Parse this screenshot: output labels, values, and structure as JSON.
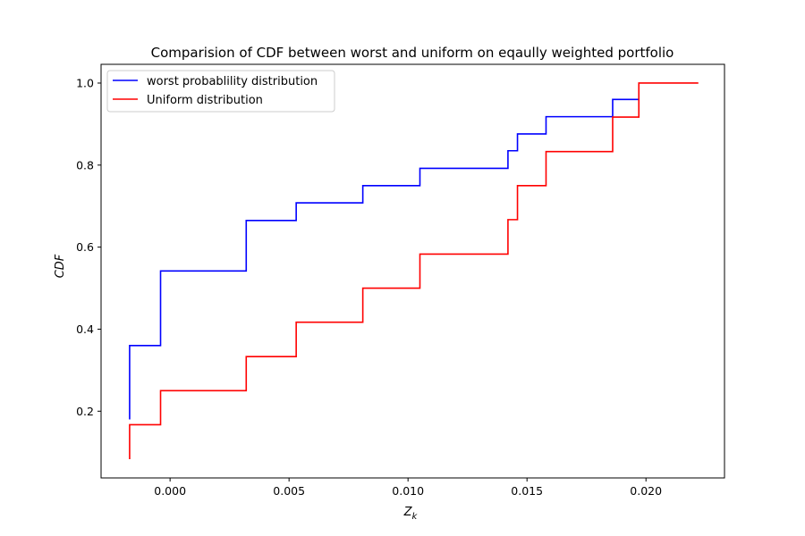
{
  "chart_data": {
    "type": "line",
    "step": "post",
    "title": "Comparision of  CDF between worst and uniform on eqaully weighted portfolio",
    "xlabel": "Z",
    "xlabel_subscript": "k",
    "ylabel": "CDF",
    "xlim": [
      -0.0029,
      0.0233
    ],
    "ylim": [
      0.0373,
      1.0457
    ],
    "xticks": [
      0.0,
      0.005,
      0.01,
      0.015,
      0.02
    ],
    "xtick_labels": [
      "0.000",
      "0.005",
      "0.010",
      "0.015",
      "0.020"
    ],
    "yticks": [
      0.2,
      0.4,
      0.6,
      0.8,
      1.0
    ],
    "ytick_labels": [
      "0.2",
      "0.4",
      "0.6",
      "0.8",
      "1.0"
    ],
    "grid": false,
    "legend_position": "top-left",
    "series": [
      {
        "name": "worst probablility distribution",
        "color": "#0000ff",
        "x": [
          -0.0017,
          -0.0017,
          -0.0004,
          0.0032,
          0.0053,
          0.0081,
          0.0105,
          0.0142,
          0.0146,
          0.0158,
          0.0186,
          0.0197
        ],
        "y": [
          0.18,
          0.36,
          0.542,
          0.665,
          0.708,
          0.75,
          0.792,
          0.835,
          0.876,
          0.918,
          0.96,
          0.96
        ]
      },
      {
        "name": "Uniform distribution",
        "color": "#ff0000",
        "x": [
          -0.0017,
          -0.0017,
          -0.0004,
          0.0032,
          0.0053,
          0.0081,
          0.0105,
          0.0142,
          0.0146,
          0.0158,
          0.0186,
          0.0197,
          0.0222
        ],
        "y": [
          0.083,
          0.167,
          0.25,
          0.333,
          0.417,
          0.5,
          0.583,
          0.667,
          0.75,
          0.833,
          0.917,
          1.0,
          1.0
        ]
      }
    ]
  }
}
